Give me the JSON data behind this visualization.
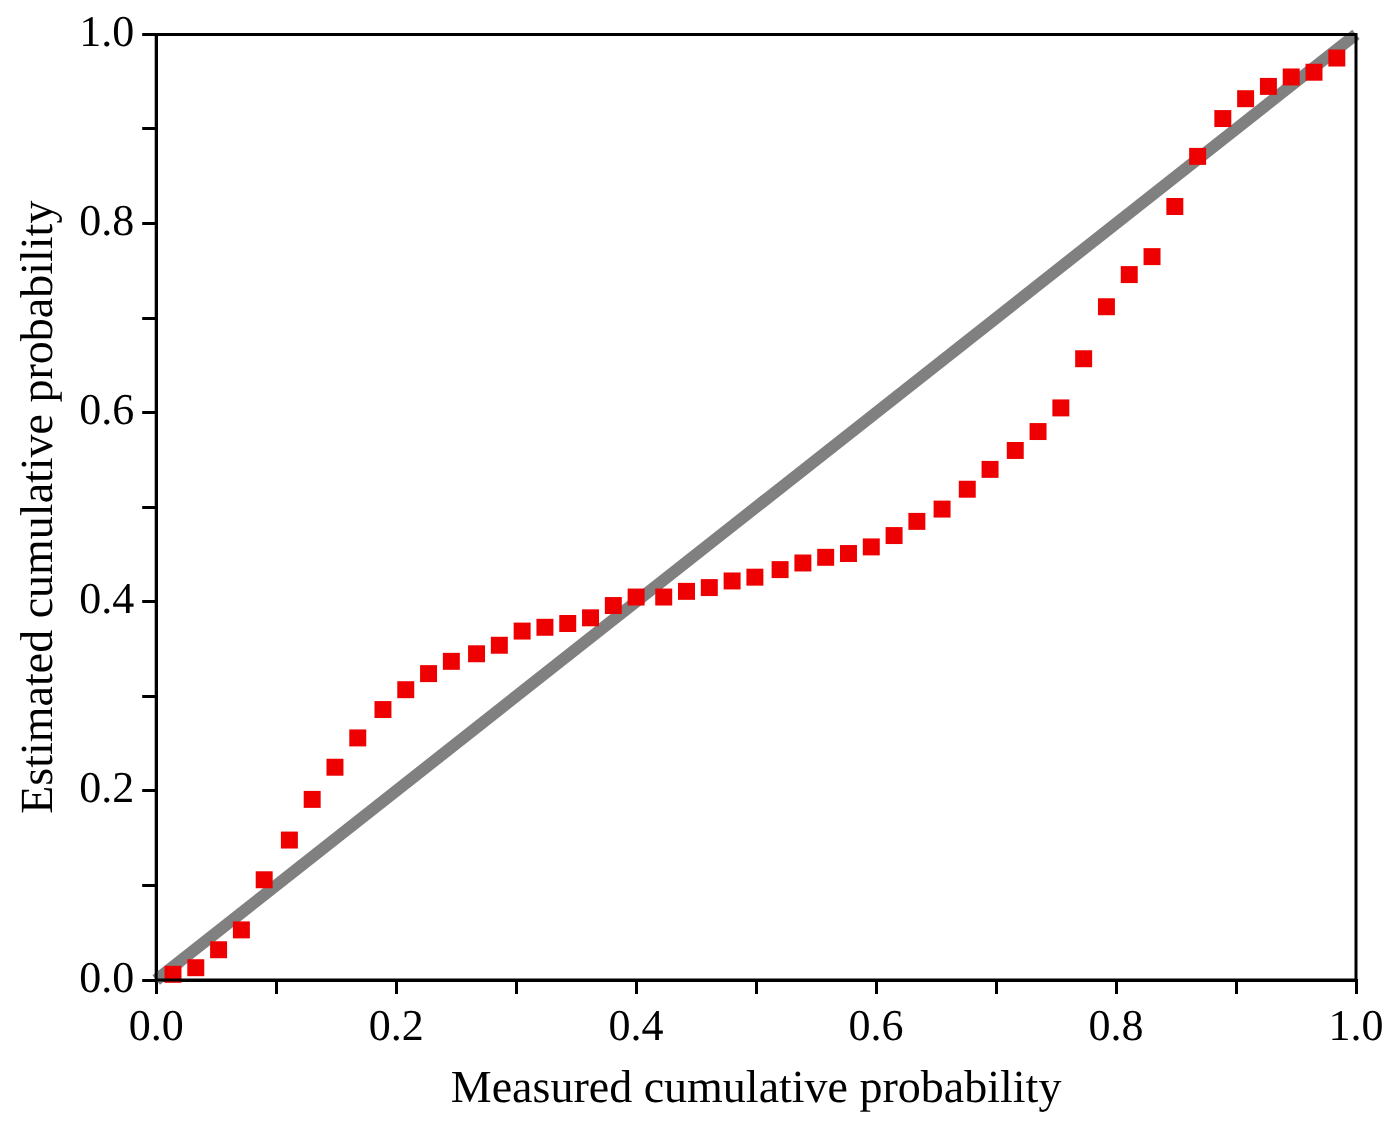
{
  "chart_data": {
    "type": "scatter",
    "xlabel": "Measured cumulative probability",
    "ylabel": "Estimated cumulative probability",
    "xlim": [
      0,
      1
    ],
    "ylim": [
      0,
      1
    ],
    "xticks": [
      {
        "value": 0,
        "label": "0.0"
      },
      {
        "value": 0.1,
        "label": null
      },
      {
        "value": 0.2,
        "label": "0.2"
      },
      {
        "value": 0.3,
        "label": null
      },
      {
        "value": 0.4,
        "label": "0.4"
      },
      {
        "value": 0.5,
        "label": null
      },
      {
        "value": 0.6,
        "label": "0.6"
      },
      {
        "value": 0.7,
        "label": null
      },
      {
        "value": 0.8,
        "label": "0.8"
      },
      {
        "value": 0.9,
        "label": null
      },
      {
        "value": 1,
        "label": "1.0"
      }
    ],
    "yticks": [
      {
        "value": 0,
        "label": "0.0"
      },
      {
        "value": 0.1,
        "label": null
      },
      {
        "value": 0.2,
        "label": "0.2"
      },
      {
        "value": 0.3,
        "label": null
      },
      {
        "value": 0.4,
        "label": "0.4"
      },
      {
        "value": 0.5,
        "label": null
      },
      {
        "value": 0.6,
        "label": "0.6"
      },
      {
        "value": 0.7,
        "label": null
      },
      {
        "value": 0.8,
        "label": "0.8"
      },
      {
        "value": 0.9,
        "label": null
      },
      {
        "value": 1,
        "label": "1.0"
      }
    ],
    "grid": false,
    "legend": false,
    "series": [
      {
        "type": "scatter",
        "color": "#ee0000",
        "marker": "square",
        "x": [
          0.014,
          0.033,
          0.052,
          0.071,
          0.09,
          0.111,
          0.13,
          0.149,
          0.168,
          0.189,
          0.208,
          0.227,
          0.246,
          0.267,
          0.286,
          0.305,
          0.324,
          0.343,
          0.362,
          0.381,
          0.4,
          0.423,
          0.442,
          0.461,
          0.48,
          0.499,
          0.52,
          0.539,
          0.558,
          0.577,
          0.596,
          0.615,
          0.634,
          0.655,
          0.676,
          0.695,
          0.716,
          0.735,
          0.754,
          0.773,
          0.792,
          0.811,
          0.83,
          0.849,
          0.868,
          0.889,
          0.908,
          0.927,
          0.946,
          0.965,
          0.984
        ],
        "values": [
          0.006,
          0.013,
          0.032,
          0.053,
          0.106,
          0.148,
          0.191,
          0.225,
          0.256,
          0.286,
          0.307,
          0.324,
          0.337,
          0.345,
          0.354,
          0.369,
          0.373,
          0.377,
          0.383,
          0.396,
          0.405,
          0.405,
          0.411,
          0.415,
          0.422,
          0.426,
          0.434,
          0.441,
          0.447,
          0.451,
          0.458,
          0.47,
          0.485,
          0.498,
          0.519,
          0.54,
          0.56,
          0.58,
          0.605,
          0.657,
          0.712,
          0.746,
          0.765,
          0.818,
          0.871,
          0.911,
          0.932,
          0.945,
          0.955,
          0.96,
          0.975
        ]
      },
      {
        "type": "line",
        "color": "#808080",
        "marker": "none",
        "line_style": "solid",
        "x": [
          0,
          1
        ],
        "values": [
          0,
          1
        ]
      }
    ]
  }
}
